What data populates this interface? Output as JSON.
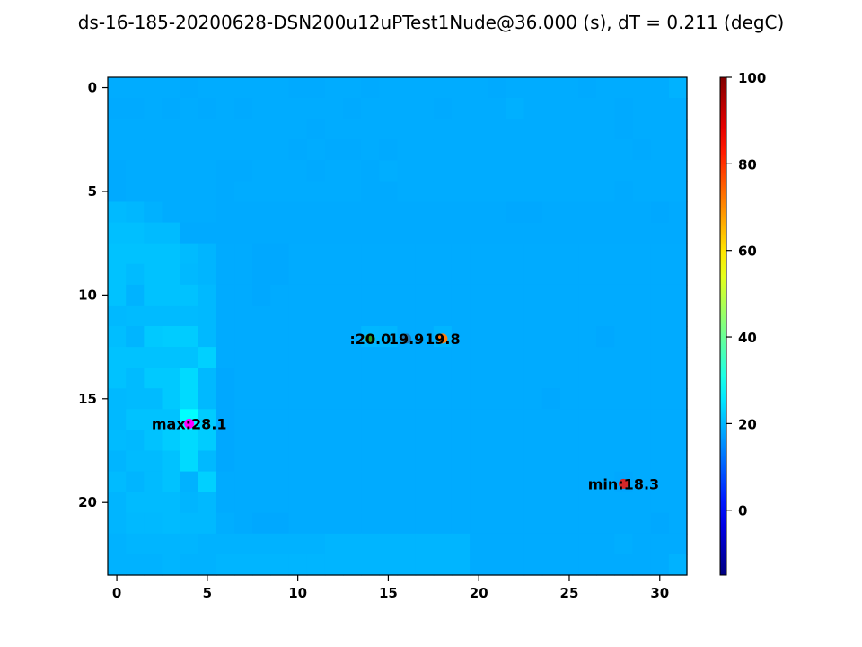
{
  "chart_data": {
    "type": "heatmap",
    "title": "ds-16-185-20200628-DSN200u12uPTest1Nude@36.000 (s), dT = 0.211 (degC)",
    "xlabel": "",
    "ylabel": "",
    "rows": 24,
    "cols": 32,
    "x_ticks": [
      0,
      5,
      10,
      15,
      20,
      25,
      30
    ],
    "y_ticks": [
      0,
      5,
      10,
      15,
      20
    ],
    "colorbar": {
      "label": "",
      "range": [
        -15,
        100
      ],
      "ticks": [
        0,
        20,
        40,
        60,
        80,
        100
      ],
      "colormap": "jet"
    },
    "values": [
      [
        18.8,
        18.8,
        18.8,
        18.8,
        18.5,
        18.8,
        18.8,
        18.8,
        18.8,
        18.8,
        18.5,
        18.5,
        18.8,
        18.8,
        18.5,
        18.8,
        18.8,
        18.8,
        18.8,
        18.8,
        18.8,
        18.5,
        18.8,
        18.8,
        18.8,
        18.8,
        18.5,
        18.8,
        18.8,
        18.8,
        18.8,
        19.4
      ],
      [
        18.5,
        18.5,
        18.8,
        18.5,
        18.8,
        18.5,
        18.8,
        18.5,
        18.8,
        18.8,
        18.8,
        18.8,
        18.8,
        18.5,
        18.8,
        18.8,
        18.8,
        18.8,
        18.5,
        18.8,
        18.8,
        18.8,
        19.2,
        18.8,
        18.8,
        18.8,
        18.8,
        18.8,
        18.5,
        18.8,
        18.8,
        18.8
      ],
      [
        18.8,
        18.8,
        18.8,
        18.8,
        18.8,
        18.8,
        18.8,
        18.8,
        18.8,
        18.8,
        18.8,
        18.5,
        18.8,
        18.8,
        18.8,
        18.8,
        18.8,
        18.8,
        18.8,
        18.8,
        18.8,
        18.8,
        18.8,
        18.8,
        18.8,
        18.8,
        18.8,
        18.8,
        18.5,
        18.8,
        18.8,
        18.8
      ],
      [
        18.8,
        18.8,
        18.8,
        18.8,
        18.8,
        18.8,
        18.8,
        18.8,
        18.8,
        18.8,
        18.5,
        18.8,
        18.5,
        18.5,
        18.8,
        18.5,
        18.8,
        18.8,
        18.8,
        18.8,
        18.8,
        18.8,
        18.8,
        18.8,
        18.8,
        18.8,
        18.8,
        18.8,
        18.8,
        18.5,
        18.8,
        18.8
      ],
      [
        18.5,
        18.8,
        18.8,
        18.8,
        18.8,
        18.8,
        18.5,
        18.5,
        18.8,
        18.8,
        18.8,
        18.5,
        18.8,
        18.8,
        18.5,
        19.0,
        18.8,
        18.8,
        18.8,
        18.8,
        18.8,
        18.8,
        18.8,
        18.8,
        18.8,
        18.8,
        18.8,
        18.8,
        18.8,
        18.8,
        18.8,
        18.8
      ],
      [
        18.5,
        18.8,
        18.8,
        18.8,
        18.8,
        18.8,
        18.5,
        18.8,
        18.8,
        18.8,
        18.8,
        18.8,
        18.8,
        18.8,
        18.5,
        18.5,
        18.8,
        18.8,
        18.8,
        18.8,
        18.8,
        18.8,
        18.8,
        18.8,
        18.8,
        18.8,
        18.8,
        18.8,
        18.5,
        18.8,
        18.8,
        18.8
      ],
      [
        20.3,
        20.0,
        19.3,
        18.8,
        18.8,
        18.8,
        18.5,
        18.5,
        18.5,
        18.5,
        18.5,
        18.5,
        18.5,
        18.5,
        18.5,
        18.5,
        18.5,
        18.5,
        18.5,
        18.5,
        18.5,
        18.5,
        18.3,
        18.3,
        18.5,
        18.5,
        18.5,
        18.5,
        18.5,
        18.5,
        18.3,
        18.5
      ],
      [
        20.9,
        20.9,
        20.5,
        20.5,
        18.5,
        18.5,
        18.5,
        18.5,
        18.5,
        18.5,
        18.5,
        18.5,
        18.5,
        18.5,
        18.5,
        18.5,
        18.5,
        18.5,
        18.5,
        18.5,
        18.5,
        18.5,
        18.5,
        18.5,
        18.5,
        18.5,
        18.5,
        18.5,
        18.5,
        18.5,
        18.5,
        18.5
      ],
      [
        21.2,
        21.2,
        21.2,
        21.2,
        20.5,
        19.8,
        18.6,
        18.6,
        18.3,
        18.3,
        18.6,
        18.6,
        18.6,
        18.6,
        18.6,
        18.6,
        18.6,
        18.6,
        18.6,
        18.6,
        18.6,
        18.6,
        18.6,
        18.6,
        18.6,
        18.6,
        18.6,
        18.6,
        18.6,
        18.6,
        18.6,
        18.6
      ],
      [
        21.2,
        20.5,
        21.2,
        21.2,
        20.2,
        19.8,
        18.6,
        18.6,
        18.3,
        18.3,
        18.6,
        18.6,
        18.6,
        18.6,
        18.6,
        18.6,
        18.6,
        18.6,
        18.6,
        18.6,
        18.6,
        18.6,
        18.6,
        18.6,
        18.6,
        18.6,
        18.6,
        18.6,
        18.6,
        18.6,
        18.6,
        18.6
      ],
      [
        21.2,
        19.5,
        21.2,
        21.2,
        21.2,
        20.2,
        18.6,
        18.6,
        18.3,
        18.6,
        18.6,
        18.6,
        18.6,
        18.6,
        18.6,
        18.6,
        18.6,
        18.6,
        18.6,
        18.6,
        18.6,
        18.6,
        18.6,
        18.6,
        18.6,
        18.6,
        18.6,
        18.6,
        18.6,
        18.6,
        18.6,
        18.6
      ],
      [
        20.2,
        20.5,
        20.5,
        20.5,
        20.5,
        20.2,
        18.6,
        18.6,
        18.6,
        18.6,
        18.6,
        18.6,
        18.6,
        18.6,
        18.6,
        18.6,
        18.6,
        18.6,
        18.6,
        18.6,
        18.6,
        18.6,
        18.6,
        18.6,
        18.6,
        18.6,
        18.6,
        18.6,
        18.6,
        18.6,
        18.6,
        18.6
      ],
      [
        20.8,
        19.8,
        22.0,
        22.4,
        22.4,
        20.2,
        18.6,
        18.6,
        18.6,
        18.6,
        18.6,
        18.6,
        18.6,
        18.6,
        20.0,
        19.9,
        18.6,
        18.6,
        19.8,
        18.6,
        18.6,
        18.6,
        18.6,
        18.6,
        18.6,
        18.6,
        18.6,
        18.3,
        18.6,
        18.6,
        18.6,
        18.6
      ],
      [
        21.2,
        21.2,
        21.2,
        21.2,
        21.2,
        22.8,
        18.6,
        18.6,
        18.6,
        18.6,
        18.6,
        18.6,
        18.6,
        18.6,
        18.6,
        18.6,
        18.6,
        18.6,
        18.6,
        18.6,
        18.6,
        18.6,
        18.6,
        18.6,
        18.6,
        18.6,
        18.6,
        18.6,
        18.6,
        18.6,
        18.6,
        18.6
      ],
      [
        21.2,
        20.5,
        22.0,
        22.0,
        24.0,
        20.2,
        18.3,
        18.6,
        18.6,
        18.6,
        18.6,
        18.6,
        18.6,
        18.6,
        18.6,
        18.6,
        18.6,
        18.6,
        18.6,
        18.6,
        18.6,
        18.6,
        18.6,
        18.6,
        18.6,
        18.6,
        18.6,
        18.6,
        18.6,
        18.6,
        18.6,
        18.6
      ],
      [
        20.2,
        20.5,
        20.5,
        22.0,
        24.0,
        20.2,
        18.3,
        18.6,
        18.6,
        18.6,
        18.6,
        18.6,
        18.6,
        18.6,
        18.6,
        18.6,
        18.6,
        18.6,
        18.6,
        18.6,
        18.6,
        18.6,
        18.6,
        18.6,
        18.3,
        18.6,
        18.6,
        18.6,
        18.6,
        18.6,
        18.6,
        18.6
      ],
      [
        20.2,
        21.2,
        21.2,
        21.2,
        28.1,
        22.4,
        18.3,
        18.6,
        18.6,
        18.6,
        18.6,
        18.6,
        18.6,
        18.6,
        18.6,
        18.6,
        18.6,
        18.6,
        18.6,
        18.6,
        18.6,
        18.6,
        18.6,
        18.6,
        18.6,
        18.6,
        18.6,
        18.6,
        18.6,
        18.6,
        18.6,
        18.6
      ],
      [
        20.5,
        20.2,
        21.2,
        22.4,
        24.0,
        22.4,
        18.3,
        18.6,
        18.6,
        18.6,
        18.6,
        18.6,
        18.6,
        18.6,
        18.6,
        18.6,
        18.6,
        18.6,
        18.6,
        18.6,
        18.6,
        18.6,
        18.6,
        18.6,
        18.6,
        18.6,
        18.6,
        18.6,
        18.6,
        18.6,
        18.6,
        18.6
      ],
      [
        19.8,
        20.5,
        20.5,
        21.2,
        24.0,
        20.2,
        18.3,
        18.6,
        18.6,
        18.6,
        18.6,
        18.6,
        18.6,
        18.6,
        18.6,
        18.6,
        18.6,
        18.6,
        18.6,
        18.6,
        18.6,
        18.6,
        18.6,
        18.6,
        18.6,
        18.6,
        18.6,
        18.6,
        18.6,
        18.6,
        18.6,
        18.6
      ],
      [
        20.5,
        19.8,
        20.5,
        21.2,
        19.4,
        22.8,
        18.6,
        18.6,
        18.6,
        18.6,
        18.6,
        18.6,
        18.6,
        18.6,
        18.6,
        18.6,
        18.6,
        18.6,
        18.6,
        18.6,
        18.6,
        18.6,
        18.6,
        18.6,
        18.6,
        18.6,
        18.6,
        18.6,
        18.3,
        18.6,
        18.6,
        18.6
      ],
      [
        19.8,
        20.5,
        20.5,
        20.5,
        19.8,
        20.2,
        18.6,
        18.6,
        18.6,
        18.6,
        18.6,
        18.6,
        18.6,
        18.6,
        18.6,
        18.6,
        18.6,
        18.6,
        18.6,
        18.6,
        18.6,
        18.6,
        18.6,
        18.6,
        18.6,
        18.6,
        18.6,
        18.6,
        18.6,
        18.6,
        18.6,
        18.6
      ],
      [
        19.8,
        20.2,
        20.2,
        20.5,
        20.2,
        20.2,
        19.0,
        18.6,
        18.3,
        18.3,
        18.6,
        18.6,
        18.6,
        18.6,
        18.6,
        18.6,
        18.6,
        18.6,
        18.6,
        18.6,
        18.6,
        18.6,
        18.6,
        18.6,
        18.6,
        18.6,
        18.6,
        18.6,
        18.6,
        18.6,
        18.3,
        18.6
      ],
      [
        19.4,
        19.8,
        19.8,
        19.8,
        19.8,
        19.4,
        19.4,
        19.4,
        19.4,
        19.4,
        19.4,
        19.4,
        19.8,
        19.8,
        19.8,
        19.8,
        19.8,
        19.8,
        19.8,
        19.8,
        18.6,
        18.6,
        18.6,
        18.6,
        18.6,
        18.6,
        18.6,
        18.6,
        19.0,
        18.6,
        18.6,
        18.6
      ],
      [
        19.4,
        19.4,
        19.4,
        19.8,
        19.4,
        19.4,
        19.8,
        19.8,
        19.8,
        19.8,
        19.8,
        19.8,
        19.8,
        19.8,
        19.8,
        19.8,
        19.8,
        19.8,
        19.8,
        19.8,
        18.6,
        18.6,
        18.6,
        18.6,
        18.6,
        18.6,
        18.6,
        18.6,
        18.6,
        18.6,
        18.6,
        19.4
      ]
    ],
    "annotations": [
      {
        "text": "max:28.1",
        "col": 4,
        "row": 16.2,
        "marker_color": "#ff00ff"
      },
      {
        "text": ":20.0",
        "col": 14,
        "row": 12.1,
        "marker_color": "#2ca02c"
      },
      {
        "text": "19.9",
        "col": 16,
        "row": 12.1,
        "marker_color": "#1f77b4"
      },
      {
        "text": "19.8",
        "col": 18,
        "row": 12.1,
        "marker_color": "#ff7f0e"
      },
      {
        "text": "min:18.3",
        "col": 28,
        "row": 19.1,
        "marker_color": "#d62728"
      }
    ]
  }
}
